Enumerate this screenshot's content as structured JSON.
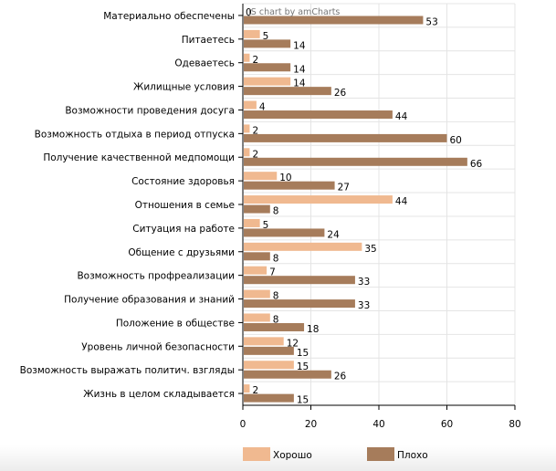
{
  "chart_data": {
    "type": "bar",
    "orientation": "horizontal",
    "credit": "JS chart by amCharts",
    "categories": [
      "Материально обеспечены",
      "Питаетесь",
      "Одеваетесь",
      "Жилищные условия",
      "Возможности проведения досуга",
      "Возможность отдыха в период отпуска",
      "Получение качественной медпомощи",
      "Состояние здоровья",
      "Отношения в семье",
      "Ситуация на работе",
      "Общение с друзьями",
      "Возможность профреализации",
      "Получение образования и знаний",
      "Положение в обществе",
      "Уровень личной безопасности",
      "Возможность выражать политич. взгляды",
      "Жизнь в целом складывается"
    ],
    "series": [
      {
        "name": "Хорошо",
        "color": "#f0b990",
        "values": [
          0,
          5,
          2,
          14,
          4,
          2,
          2,
          10,
          44,
          5,
          35,
          7,
          8,
          8,
          12,
          15,
          2
        ]
      },
      {
        "name": "Плохо",
        "color": "#a67c5b",
        "values": [
          53,
          14,
          14,
          26,
          44,
          60,
          66,
          27,
          8,
          24,
          8,
          33,
          33,
          18,
          15,
          26,
          15
        ]
      }
    ],
    "xlim": [
      0,
      80
    ],
    "xticks": [
      "0",
      "20",
      "40",
      "60",
      "80"
    ],
    "grid": true,
    "legend": "bottom"
  }
}
